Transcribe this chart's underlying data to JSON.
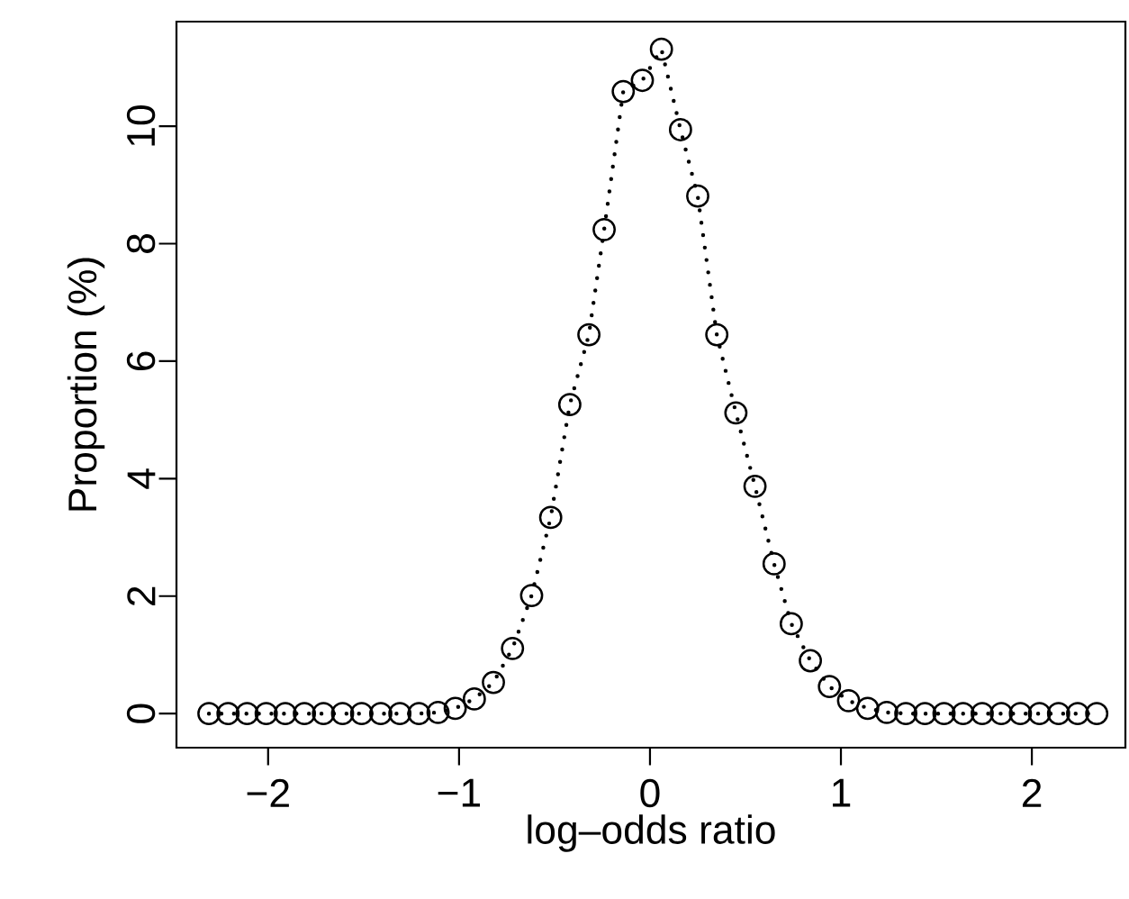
{
  "chart_data": {
    "type": "line",
    "xlabel": "log–odds ratio",
    "ylabel": "Proportion (%)",
    "x": [
      -2.31,
      -2.21,
      -2.11,
      -2.01,
      -1.91,
      -1.81,
      -1.71,
      -1.61,
      -1.51,
      -1.41,
      -1.31,
      -1.21,
      -1.11,
      -1.02,
      -0.92,
      -0.82,
      -0.72,
      -0.62,
      -0.52,
      -0.42,
      -0.32,
      -0.24,
      -0.14,
      -0.04,
      0.06,
      0.16,
      0.25,
      0.35,
      0.45,
      0.55,
      0.65,
      0.74,
      0.84,
      0.94,
      1.04,
      1.14,
      1.24,
      1.34,
      1.44,
      1.54,
      1.64,
      1.74,
      1.84,
      1.94,
      2.04,
      2.14,
      2.24,
      2.34
    ],
    "series": [
      {
        "color": "#000000",
        "values": [
          0,
          0,
          0,
          0,
          0,
          0,
          0,
          0,
          0,
          0,
          0,
          0,
          0.02,
          0.09,
          0.25,
          0.53,
          1.11,
          2.01,
          3.34,
          5.26,
          6.45,
          8.24,
          10.59,
          10.78,
          11.31,
          9.94,
          8.81,
          6.45,
          5.12,
          3.87,
          2.55,
          1.53,
          0.9,
          0.46,
          0.22,
          0.09,
          0.02,
          0,
          0,
          0,
          0,
          0,
          0,
          0,
          0,
          0,
          0,
          0
        ]
      }
    ],
    "marker": "circle",
    "line_style": "dotted",
    "grid": false,
    "xlim": [
      -2.48,
      2.49
    ],
    "ylim": [
      -0.58,
      11.78
    ],
    "xticks": [
      {
        "value": -2,
        "label": "−2"
      },
      {
        "value": -1,
        "label": "−1"
      },
      0,
      1,
      2
    ],
    "yticks": [
      0,
      2,
      4,
      6,
      8,
      10
    ]
  }
}
